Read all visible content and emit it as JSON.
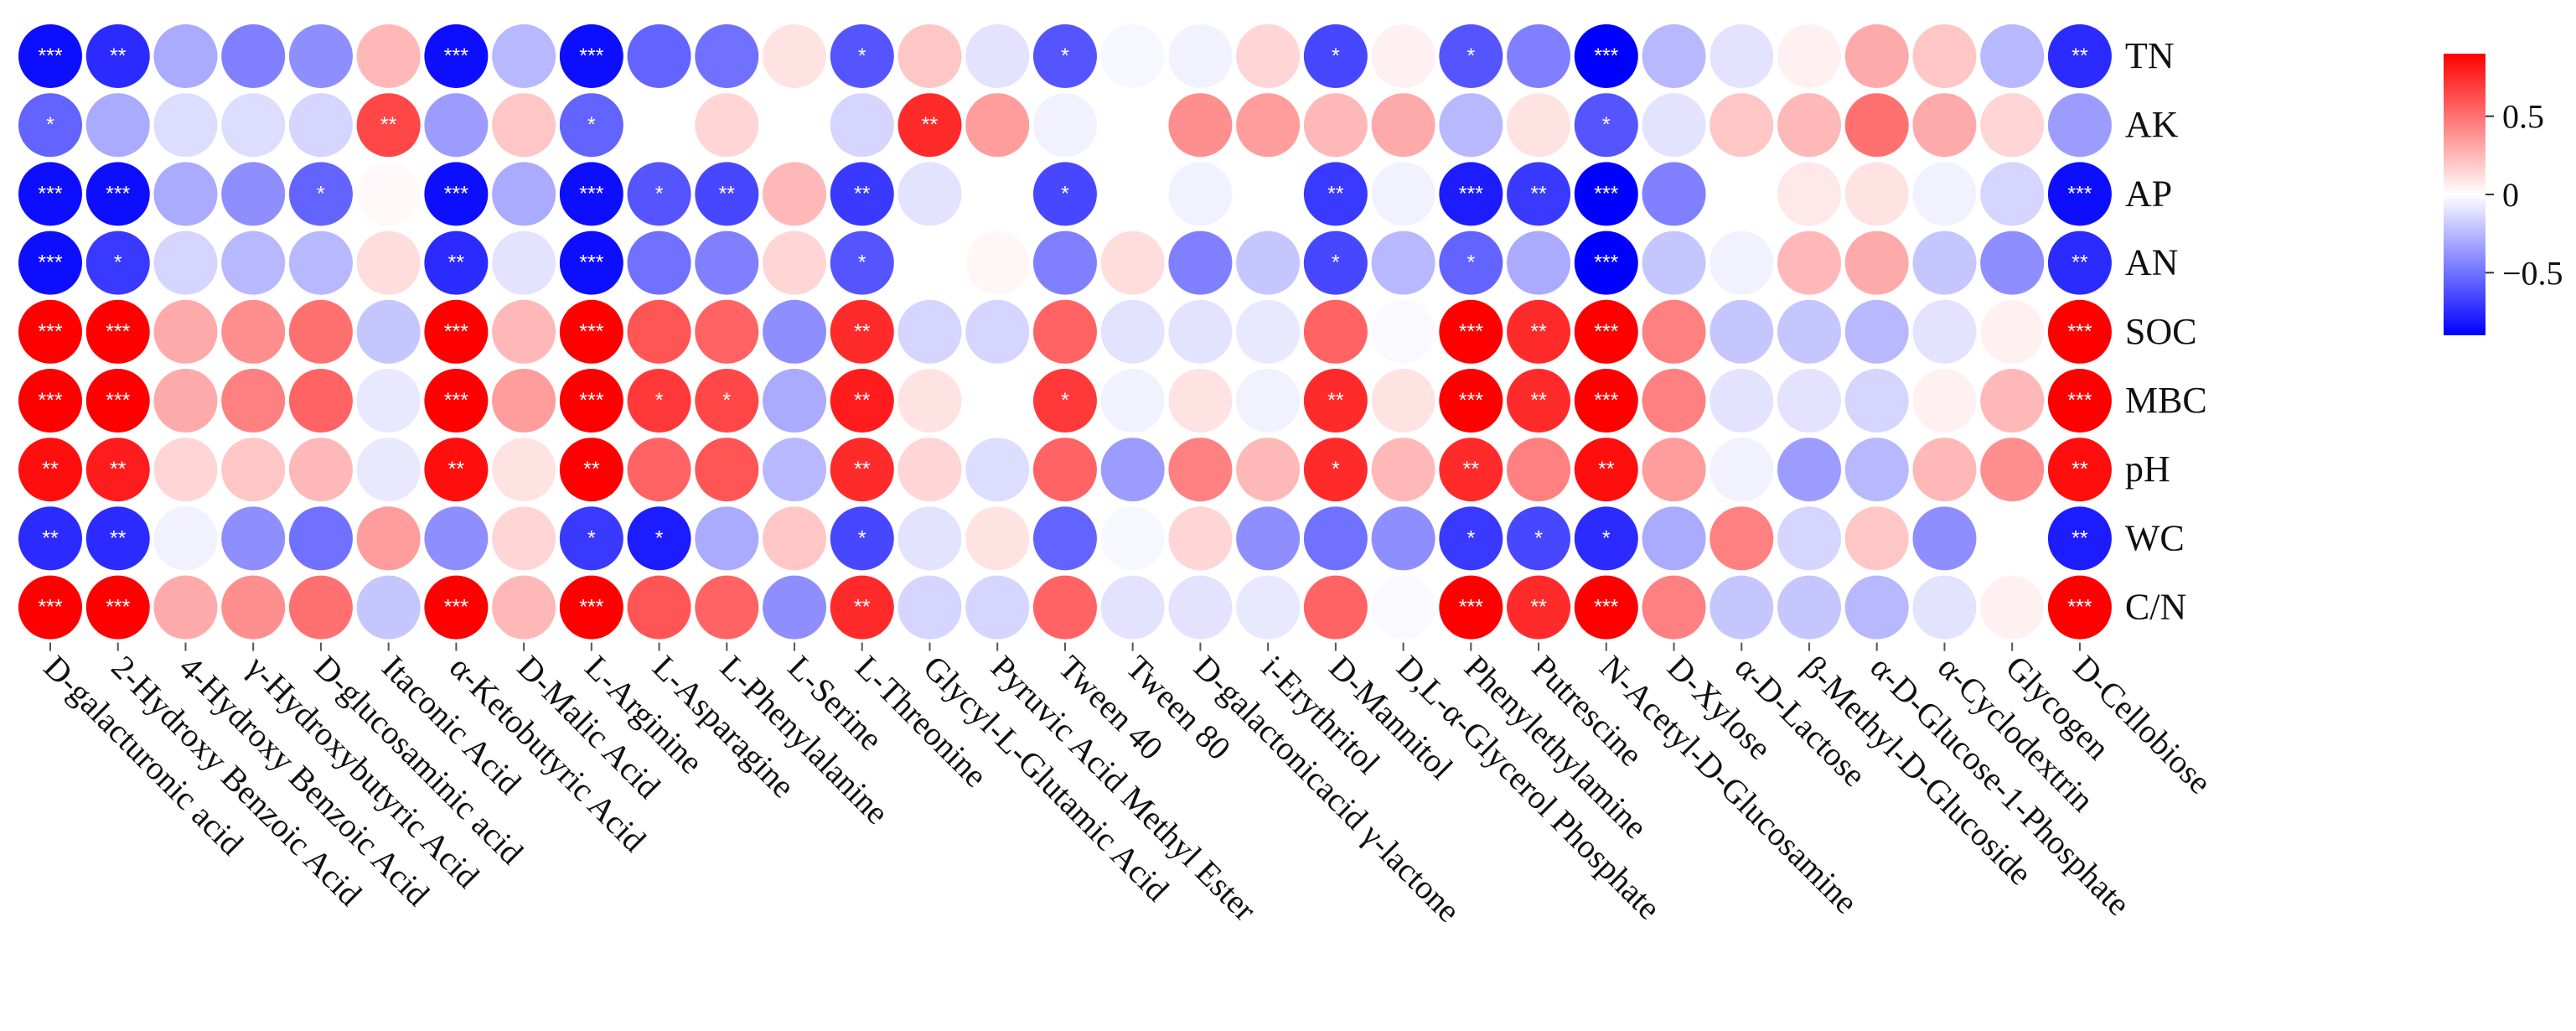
{
  "chart_data": {
    "type": "heatmap",
    "title": "",
    "rows": [
      "TN",
      "AK",
      "AP",
      "AN",
      "SOC",
      "MBC",
      "pH",
      "WC",
      "C/N"
    ],
    "columns": [
      "D-galacturonic acid",
      "2-Hydroxy Benzoic Acid",
      "4-Hydroxy Benzoic Acid",
      "γ-Hydroxybutyric Acid",
      "D-glucosaminic acid",
      "Itaconic Acid",
      "α-Ketobutyric Acid",
      "D-Malic Acid",
      "L-Arginine",
      "L-Asparagine",
      "L-Phenylalanine",
      "L-Serine",
      "L-Threonine",
      "Glycyl-L-Glutamic Acid",
      "Pyruvic Acid Methyl Ester",
      "Tween 40",
      "Tween 80",
      "D-galactonicacid γ-lactone",
      "i-Erythritol",
      "D-Mannitol",
      "D,L-α-Glycerol Phosphate",
      "Phenylethylamine",
      "Putrescine",
      "N-Acetyl-D-Glucosamine",
      "D-Xylose",
      "α-D-Lactose",
      "β-Methyl-D-Glucoside",
      "α-D-Glucose-1-Phosphate",
      "α-Cyclodextrin",
      "Glycogen",
      "D-Cellobiose"
    ],
    "values": [
      [
        -0.85,
        -0.75,
        -0.3,
        -0.45,
        -0.4,
        0.25,
        -0.85,
        -0.25,
        -0.85,
        -0.55,
        -0.5,
        0.1,
        -0.6,
        0.2,
        -0.1,
        -0.6,
        -0.03,
        -0.05,
        0.15,
        -0.65,
        0.05,
        -0.6,
        -0.45,
        -0.95,
        -0.25,
        -0.1,
        0.05,
        0.3,
        0.2,
        -0.25,
        -0.75
      ],
      [
        -0.55,
        -0.3,
        -0.12,
        -0.12,
        -0.15,
        0.65,
        -0.35,
        0.2,
        -0.55,
        0.0,
        0.15,
        0.0,
        -0.15,
        0.75,
        0.35,
        -0.05,
        0.0,
        0.4,
        0.35,
        0.25,
        0.3,
        -0.25,
        0.1,
        -0.6,
        -0.1,
        0.2,
        0.25,
        0.5,
        0.3,
        0.15,
        -0.35
      ],
      [
        -0.85,
        -0.85,
        -0.3,
        -0.4,
        -0.55,
        0.02,
        -0.85,
        -0.3,
        -0.85,
        -0.6,
        -0.65,
        0.25,
        -0.7,
        -0.1,
        0.0,
        -0.65,
        0.0,
        -0.05,
        0.0,
        -0.7,
        -0.05,
        -0.8,
        -0.7,
        -0.9,
        -0.45,
        0.0,
        0.08,
        0.1,
        -0.05,
        -0.15,
        -0.85
      ],
      [
        -0.85,
        -0.7,
        -0.15,
        -0.25,
        -0.25,
        0.12,
        -0.75,
        -0.1,
        -0.85,
        -0.5,
        -0.45,
        0.15,
        -0.6,
        0.0,
        0.03,
        -0.45,
        0.12,
        -0.45,
        -0.2,
        -0.65,
        -0.25,
        -0.55,
        -0.3,
        -0.9,
        -0.2,
        -0.05,
        0.25,
        0.3,
        -0.2,
        -0.4,
        -0.75
      ],
      [
        0.95,
        0.95,
        0.3,
        0.4,
        0.5,
        -0.2,
        0.9,
        0.25,
        0.95,
        0.6,
        0.55,
        -0.4,
        0.75,
        -0.15,
        -0.15,
        0.55,
        -0.1,
        -0.1,
        -0.08,
        0.55,
        -0.02,
        0.9,
        0.75,
        0.95,
        0.45,
        -0.2,
        -0.2,
        -0.25,
        -0.1,
        0.05,
        0.95
      ],
      [
        0.95,
        0.9,
        0.3,
        0.45,
        0.55,
        -0.08,
        0.9,
        0.35,
        0.95,
        0.7,
        0.65,
        -0.3,
        0.8,
        0.1,
        0.0,
        0.7,
        -0.05,
        0.1,
        -0.05,
        0.75,
        0.1,
        0.9,
        0.75,
        0.95,
        0.45,
        -0.1,
        -0.1,
        -0.15,
        0.05,
        0.25,
        0.95
      ],
      [
        0.85,
        0.8,
        0.15,
        0.2,
        0.25,
        -0.08,
        0.85,
        0.1,
        0.9,
        0.55,
        0.6,
        -0.25,
        0.75,
        0.15,
        -0.12,
        0.55,
        -0.35,
        0.45,
        0.25,
        0.75,
        0.25,
        0.75,
        0.45,
        0.85,
        0.35,
        -0.05,
        -0.35,
        -0.25,
        0.25,
        0.4,
        0.85
      ],
      [
        -0.75,
        -0.75,
        -0.05,
        -0.4,
        -0.5,
        0.35,
        -0.4,
        0.15,
        -0.7,
        -0.8,
        -0.3,
        0.2,
        -0.65,
        -0.1,
        0.1,
        -0.55,
        -0.03,
        0.15,
        -0.4,
        -0.5,
        -0.4,
        -0.7,
        -0.65,
        -0.75,
        -0.3,
        0.45,
        -0.15,
        0.2,
        -0.4,
        0.0,
        -0.8
      ],
      [
        0.95,
        0.95,
        0.3,
        0.4,
        0.5,
        -0.2,
        0.9,
        0.25,
        0.95,
        0.6,
        0.55,
        -0.4,
        0.75,
        -0.15,
        -0.15,
        0.55,
        -0.1,
        -0.1,
        -0.08,
        0.55,
        -0.02,
        0.9,
        0.75,
        0.95,
        0.45,
        -0.2,
        -0.2,
        -0.25,
        -0.1,
        0.05,
        0.95
      ]
    ],
    "significance": [
      [
        "***",
        "**",
        "",
        "",
        "",
        "",
        "***",
        "",
        "***",
        "",
        "",
        "",
        "*",
        "",
        "",
        "*",
        "",
        "",
        "",
        "*",
        "",
        "*",
        "",
        "***",
        "",
        "",
        "",
        "",
        "",
        "",
        "**"
      ],
      [
        "*",
        "",
        "",
        "",
        "",
        "**",
        "",
        "",
        "*",
        "",
        "",
        "",
        "",
        "**",
        "",
        "",
        "",
        "",
        "",
        "",
        "",
        "",
        "",
        "*",
        "",
        "",
        "",
        "",
        "",
        "",
        ""
      ],
      [
        "***",
        "***",
        "",
        "",
        "*",
        "",
        "***",
        "",
        "***",
        "*",
        "**",
        "",
        "**",
        "",
        "",
        "*",
        "",
        "",
        "",
        "**",
        "",
        "***",
        "**",
        "***",
        "",
        "",
        "",
        "",
        "",
        "",
        "***"
      ],
      [
        "***",
        "*",
        "",
        "",
        "",
        "",
        "**",
        "",
        "***",
        "",
        "",
        "",
        "*",
        "",
        "",
        "",
        "",
        "",
        "",
        "*",
        "",
        "*",
        "",
        "***",
        "",
        "",
        "",
        "",
        "",
        "",
        "**"
      ],
      [
        "***",
        "***",
        "",
        "",
        "",
        "",
        "***",
        "",
        "***",
        "",
        "",
        "",
        "**",
        "",
        "",
        "",
        "",
        "",
        "",
        "",
        "",
        "***",
        "**",
        "***",
        "",
        "",
        "",
        "",
        "",
        "",
        "***"
      ],
      [
        "***",
        "***",
        "",
        "",
        "",
        "",
        "***",
        "",
        "***",
        "*",
        "*",
        "",
        "**",
        "",
        "",
        "*",
        "",
        "",
        "",
        "**",
        "",
        "***",
        "**",
        "***",
        "",
        "",
        "",
        "",
        "",
        "",
        "***"
      ],
      [
        "**",
        "**",
        "",
        "",
        "",
        "",
        "**",
        "",
        "**",
        "",
        "",
        "",
        "**",
        "",
        "",
        "",
        "",
        "",
        "",
        "*",
        "",
        "**",
        "",
        "**",
        "",
        "",
        "",
        "",
        "",
        "",
        "**"
      ],
      [
        "**",
        "**",
        "",
        "",
        "",
        "",
        "",
        "",
        "*",
        "*",
        "",
        "",
        "*",
        "",
        "",
        "",
        "",
        "",
        "",
        "",
        "",
        "*",
        "*",
        "*",
        "",
        "",
        "",
        "",
        "",
        "",
        "**"
      ],
      [
        "***",
        "***",
        "",
        "",
        "",
        "",
        "***",
        "",
        "***",
        "",
        "",
        "",
        "**",
        "",
        "",
        "",
        "",
        "",
        "",
        "",
        "",
        "***",
        "**",
        "***",
        "",
        "",
        "",
        "",
        "",
        "",
        "***"
      ]
    ],
    "colorbar": {
      "range": [
        -0.9,
        0.9
      ],
      "colors": [
        "#0000ff",
        "#ffffff",
        "#ff0000"
      ],
      "ticks": [
        0.5,
        0,
        -0.5
      ],
      "tick_labels": [
        "0.5",
        "0",
        "−0.5"
      ]
    }
  }
}
